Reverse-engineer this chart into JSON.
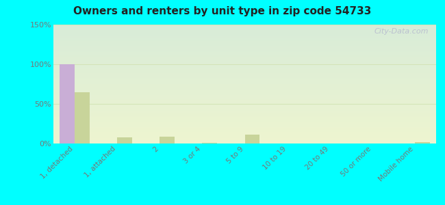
{
  "title": "Owners and renters by unit type in zip code 54733",
  "categories": [
    "1, detached",
    "1, attached",
    "2",
    "3 or 4",
    "5 to 9",
    "10 to 19",
    "20 to 49",
    "50 or more",
    "Mobile home"
  ],
  "owner_values": [
    100,
    0,
    0,
    0,
    0,
    0,
    0,
    0,
    0
  ],
  "renter_values": [
    65,
    8,
    9,
    1,
    11,
    0,
    0,
    0,
    2
  ],
  "owner_color": "#c9aed6",
  "renter_color": "#c8d49a",
  "ylim": [
    0,
    150
  ],
  "yticks": [
    0,
    50,
    100,
    150
  ],
  "ytick_labels": [
    "0%",
    "50%",
    "100%",
    "150%"
  ],
  "background_color": "#00ffff",
  "grad_top": "#d8ecd8",
  "grad_bottom": "#eef5d0",
  "grid_color": "#d4e4b8",
  "bar_width": 0.35,
  "watermark": "City-Data.com",
  "tick_color": "#777777",
  "title_color": "#222222"
}
